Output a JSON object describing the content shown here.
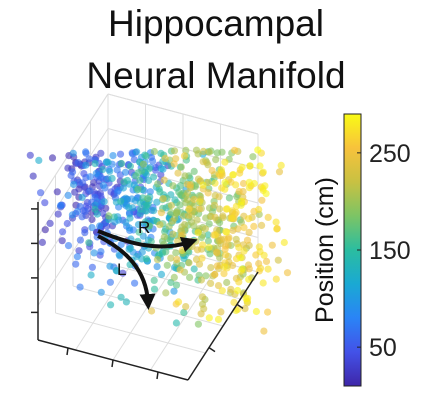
{
  "chart_data": {
    "type": "scatter",
    "projection": "3d",
    "title_lines": [
      "Hippocampal",
      "Neural Manifold"
    ],
    "point_count": 900,
    "colorbar": {
      "label": "Position (cm)",
      "ticks": [
        50,
        150,
        250
      ],
      "range": [
        10,
        290
      ],
      "colors": [
        "#3e26a8",
        "#4352e8",
        "#2a84f6",
        "#1aa9d3",
        "#2bbda0",
        "#7cc465",
        "#c8c142",
        "#f7c23c",
        "#f9fb15"
      ]
    },
    "annotations": [
      {
        "label": "R",
        "direction": "right"
      },
      {
        "label": "L",
        "direction": "down"
      }
    ],
    "grid": true
  }
}
